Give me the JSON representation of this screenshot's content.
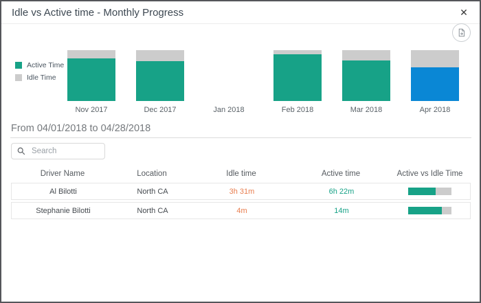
{
  "dialog": {
    "title": "Idle vs Active time - Monthly Progress",
    "close_glyph": "✕"
  },
  "colors": {
    "active_teal": "#17a287",
    "selected_blue": "#0a87d5",
    "idle_gray": "#cccccc",
    "idle_value_orange": "#e87d4e",
    "active_value_teal": "#17a287"
  },
  "chart_data": {
    "type": "bar",
    "stacked": true,
    "categories": [
      "Nov 2017",
      "Dec 2017",
      "Jan 2018",
      "Feb 2018",
      "Mar 2018",
      "Apr 2018"
    ],
    "series": [
      {
        "name": "Active Time",
        "values": [
          84,
          79,
          null,
          92,
          80,
          66
        ]
      },
      {
        "name": "Idle Time",
        "values": [
          16,
          21,
          null,
          8,
          20,
          34
        ]
      }
    ],
    "units": "percent of month total",
    "selected_category": "Apr 2018",
    "legend_position": "left",
    "ylim": [
      0,
      100
    ],
    "grid": false
  },
  "period": {
    "heading": "From 04/01/2018 to 04/28/2018"
  },
  "search": {
    "placeholder": "Search"
  },
  "table": {
    "columns": [
      "Driver Name",
      "Location",
      "Idle time",
      "Active time",
      "Active vs Idle Time"
    ],
    "rows": [
      {
        "driver": "Al Bilotti",
        "location": "North CA",
        "idle_time": "3h 31m",
        "active_time": "6h 22m",
        "active_pct": 64
      },
      {
        "driver": "Stephanie Bilotti",
        "location": "North CA",
        "idle_time": "4m",
        "active_time": "14m",
        "active_pct": 78
      }
    ]
  }
}
